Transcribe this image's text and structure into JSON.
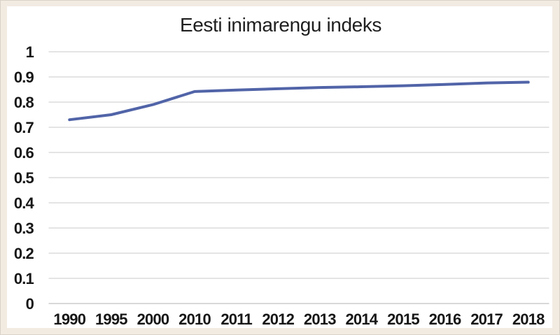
{
  "chart_data": {
    "type": "line",
    "title": "Eesti inimarengu indeks",
    "xlabel": "",
    "ylabel": "",
    "categories": [
      "1990",
      "1995",
      "2000",
      "2010",
      "2011",
      "2012",
      "2013",
      "2014",
      "2015",
      "2016",
      "2017",
      "2018"
    ],
    "series": [
      {
        "name": "Eesti inimarengu indeks",
        "values": [
          0.73,
          0.75,
          0.79,
          0.842,
          0.848,
          0.853,
          0.858,
          0.861,
          0.865,
          0.87,
          0.876,
          0.879
        ]
      }
    ],
    "ylim": [
      0,
      1
    ],
    "y_ticks": [
      {
        "value": 1.0,
        "label": "1"
      },
      {
        "value": 0.9,
        "label": "0.9"
      },
      {
        "value": 0.8,
        "label": "0.8"
      },
      {
        "value": 0.7,
        "label": "0.7"
      },
      {
        "value": 0.6,
        "label": "0.6"
      },
      {
        "value": 0.5,
        "label": "0.5"
      },
      {
        "value": 0.4,
        "label": "0.4"
      },
      {
        "value": 0.3,
        "label": "0.3"
      },
      {
        "value": 0.2,
        "label": "0.2"
      },
      {
        "value": 0.1,
        "label": "0.1"
      },
      {
        "value": 0.0,
        "label": "0"
      }
    ],
    "grid": "horizontal-on",
    "legend": "none",
    "colors": {
      "line": "#5164a8",
      "gridline": "#dcdcdc",
      "baseline": "#cccccc",
      "title": "#1f1f1f",
      "tick_label": "#171717",
      "frame": "#f2ebe2",
      "plot_background": "#ffffff"
    }
  }
}
